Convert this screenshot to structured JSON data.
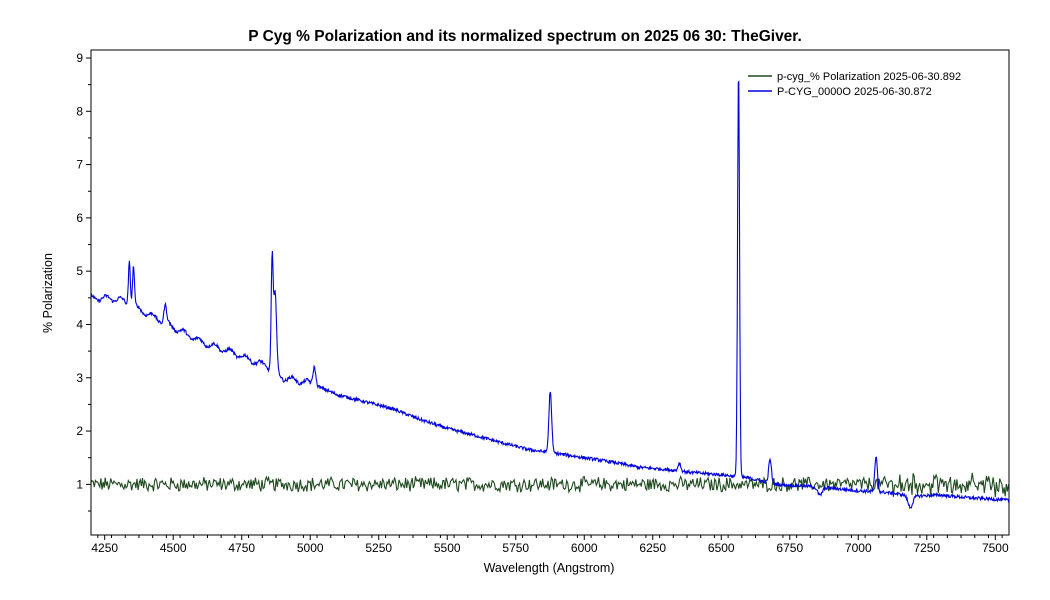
{
  "chart_data": {
    "type": "line",
    "title": "P Cyg % Polarization and its normalized spectrum on 2025 06 30: TheGiver.",
    "xlabel": "Wavelength (Angstrom)",
    "ylabel": "% Polarization",
    "xlim": [
      4200,
      7550
    ],
    "ylim": [
      0.05,
      9.15
    ],
    "xticks": [
      4250,
      4500,
      4750,
      5000,
      5250,
      5500,
      5750,
      6000,
      6250,
      6500,
      6750,
      7000,
      7250,
      7500
    ],
    "xtick_labels": [
      "4250",
      "4500",
      "4750",
      "5000",
      "5250",
      "5500",
      "5750",
      "6000",
      "6250",
      "6500",
      "6750",
      "7000",
      "7250",
      "7500"
    ],
    "yticks": [
      1,
      2,
      3,
      4,
      5,
      6,
      7,
      8,
      9
    ],
    "ytick_labels": [
      "1",
      "2",
      "3",
      "4",
      "5",
      "6",
      "7",
      "8",
      "9"
    ],
    "grid": false,
    "legend_position": "top-right",
    "series": [
      {
        "name": "p-cyg_% Polarization  2025-06-30.892",
        "color": "#1f4a1f",
        "kind": "noisy",
        "baseline": 1.0,
        "noise": 0.12
      },
      {
        "name": "P-CYG_0000O  2025-06-30.872",
        "color": "#0000dd",
        "kind": "spectrum",
        "continuum": [
          [
            4200,
            4.5
          ],
          [
            4300,
            4.48
          ],
          [
            4400,
            4.22
          ],
          [
            4500,
            3.95
          ],
          [
            4600,
            3.68
          ],
          [
            4700,
            3.5
          ],
          [
            4800,
            3.3
          ],
          [
            4850,
            3.2
          ],
          [
            4900,
            3.0
          ],
          [
            5000,
            2.9
          ],
          [
            5100,
            2.68
          ],
          [
            5200,
            2.55
          ],
          [
            5300,
            2.42
          ],
          [
            5400,
            2.22
          ],
          [
            5500,
            2.05
          ],
          [
            5600,
            1.92
          ],
          [
            5700,
            1.78
          ],
          [
            5800,
            1.65
          ],
          [
            5900,
            1.58
          ],
          [
            6000,
            1.5
          ],
          [
            6100,
            1.42
          ],
          [
            6200,
            1.32
          ],
          [
            6300,
            1.28
          ],
          [
            6400,
            1.22
          ],
          [
            6500,
            1.18
          ],
          [
            6600,
            1.12
          ],
          [
            6700,
            1.0
          ],
          [
            6800,
            0.97
          ],
          [
            6900,
            0.93
          ],
          [
            7000,
            0.88
          ],
          [
            7100,
            0.85
          ],
          [
            7200,
            0.78
          ],
          [
            7300,
            0.8
          ],
          [
            7400,
            0.75
          ],
          [
            7500,
            0.72
          ],
          [
            7550,
            0.7
          ]
        ],
        "lines": [
          {
            "x": 4340,
            "peak": 5.22
          },
          {
            "x": 4355,
            "peak": 5.1
          },
          {
            "x": 4471,
            "peak": 4.35
          },
          {
            "x": 4861,
            "peak": 5.25
          },
          {
            "x": 4872,
            "peak": 4.6
          },
          {
            "x": 5015,
            "peak": 3.2
          },
          {
            "x": 5876,
            "peak": 2.75
          },
          {
            "x": 6347,
            "peak": 1.4
          },
          {
            "x": 6563,
            "peak": 8.85
          },
          {
            "x": 6678,
            "peak": 1.47
          },
          {
            "x": 7065,
            "peak": 1.5
          }
        ],
        "absorptions": [
          {
            "x": 6860,
            "depth": 0.15
          },
          {
            "x": 7190,
            "depth": 0.22
          }
        ]
      }
    ]
  }
}
